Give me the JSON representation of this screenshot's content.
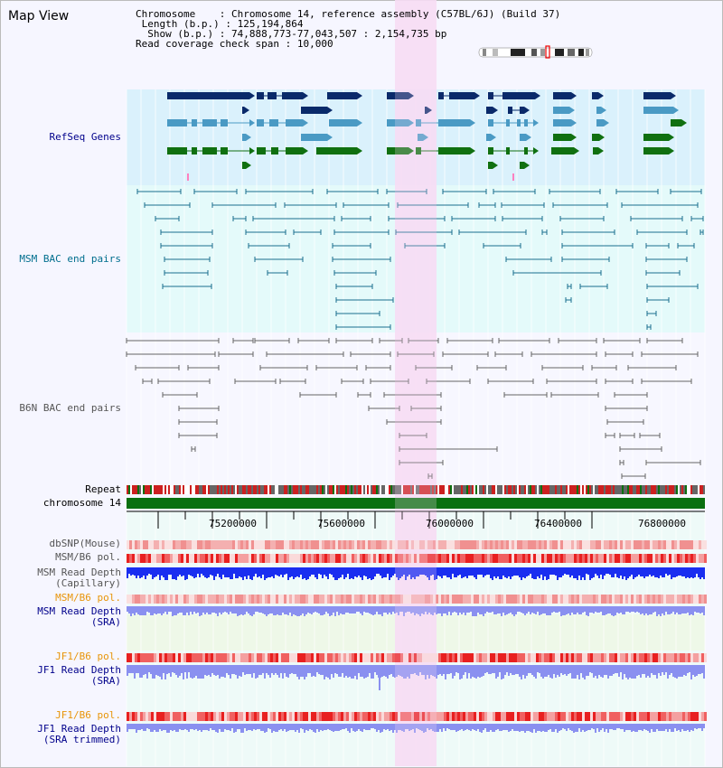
{
  "title": "Map View",
  "info": {
    "chromosome_label": "Chromosome",
    "chromosome_value": "Chromosome 14, reference assembly (C57BL/6J) (Build 37)",
    "length_label": "Length (b.p.)",
    "length_value": "125,194,864",
    "show_label": "Show (b.p.)",
    "show_value": "74,888,773-77,043,507 : 2,154,735 bp",
    "coverage_label": "Read coverage check span",
    "coverage_value": "10,000"
  },
  "tracks": {
    "refseq": "RefSeq Genes",
    "msm_bac": "MSM BAC end pairs",
    "b6n_bac": "B6N BAC end pairs",
    "repeat": "Repeat",
    "chromosome": "chromosome 14",
    "dbsnp": "dbSNP(Mouse)",
    "msm_b6_pol_1": "MSM/B6 pol.",
    "msm_depth_cap_1": "MSM Read Depth",
    "msm_depth_cap_2": "(Capillary)",
    "msm_b6_pol_2": "MSM/B6 pol.",
    "msm_depth_sra_1": "MSM Read Depth",
    "msm_depth_sra_2": "(SRA)",
    "jf1_b6_pol_1": "JF1/B6 pol.",
    "jf1_depth_sra_1": "JF1 Read Depth",
    "jf1_depth_sra_2": "(SRA)",
    "jf1_b6_pol_2": "JF1/B6 pol.",
    "jf1_depth_trim_1": "JF1 Read Depth",
    "jf1_depth_trim_2": "(SRA trimmed)"
  },
  "ruler": {
    "ticks": [
      "75200000",
      "75600000",
      "76000000",
      "76400000",
      "76800000"
    ]
  },
  "colors": {
    "refseq_bg": "#daf1fc",
    "msm_bg": "#e4fafa",
    "highlight": "#f7dcf5",
    "gene_dark": "#0a2a6a",
    "gene_mid": "#4a9ac4",
    "gene_green": "#107010",
    "msm_pair": "#1a6e8e",
    "b6n_pair": "#666666",
    "chromosome_bar": "#0a7010",
    "depth_blue": "#1a2ef0",
    "depth_light": "#8a90f0",
    "label_blue": "#00008b",
    "label_teal": "#006e8e",
    "label_gray": "#555555",
    "label_orange": "#e8950a"
  }
}
